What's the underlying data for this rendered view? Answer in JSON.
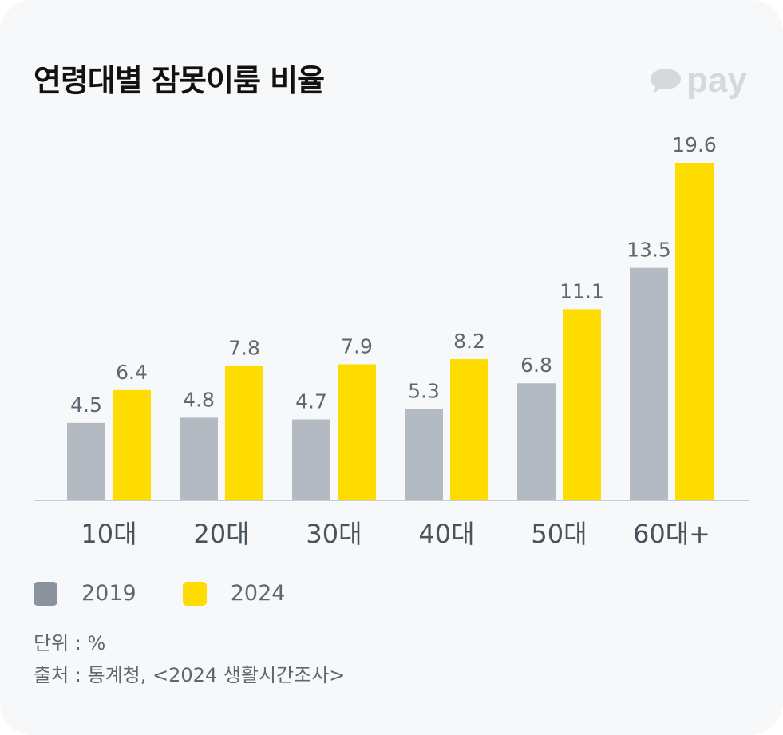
{
  "title": "연령대별 잠못이룸 비율",
  "logo_text": "pay",
  "unit_note": "단위 : %",
  "source_note": "출처 : 통계청, <2024 생활시간조사>",
  "colors": {
    "s2019_bar": "#b3bac2",
    "s2019_legend": "#8a939d",
    "s2024": "#ffdc00",
    "label": "#5f6872"
  },
  "chart_data": {
    "type": "bar",
    "title": "연령대별 잠못이룸 비율",
    "categories": [
      "10대",
      "20대",
      "30대",
      "40대",
      "50대",
      "60대+"
    ],
    "series": [
      {
        "name": "2019",
        "values": [
          4.5,
          4.8,
          4.7,
          5.3,
          6.8,
          13.5
        ]
      },
      {
        "name": "2024",
        "values": [
          6.4,
          7.8,
          7.9,
          8.2,
          11.1,
          19.6
        ]
      }
    ],
    "ylim": [
      0,
      19.6
    ],
    "xlabel": "",
    "ylabel": "",
    "grid": false,
    "legend": "bottom-left"
  }
}
